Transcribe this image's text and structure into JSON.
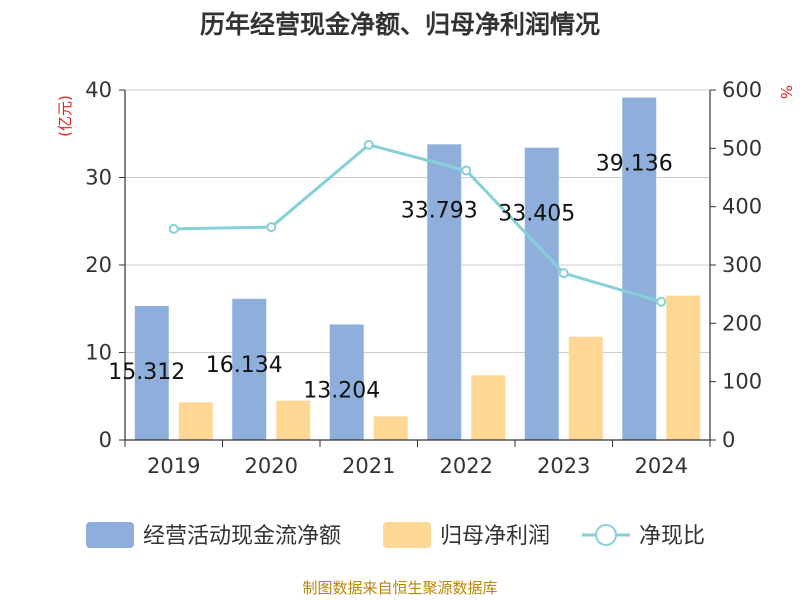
{
  "title": "历年经营现金净额、归母净利润情况",
  "source": "制图数据来自恒生聚源数据库",
  "left_unit": "(亿元)",
  "right_unit": "%",
  "colors": {
    "bar1": "#8eaedb",
    "bar2": "#fed795",
    "line": "#86d1d8",
    "axis": "#333333",
    "grid": "#cccccc",
    "unit": "#e0201e",
    "source": "#b8860b"
  },
  "chart_data": {
    "type": "bar",
    "title": "历年经营现金净额、归母净利润情况",
    "categories": [
      "2019",
      "2020",
      "2021",
      "2022",
      "2023",
      "2024"
    ],
    "series": [
      {
        "name": "经营活动现金流净额",
        "type": "bar",
        "axis": "left",
        "values": [
          15.312,
          16.134,
          13.204,
          33.793,
          33.405,
          39.136
        ],
        "labels": [
          "15.312",
          "16.134",
          "13.204",
          "33.793",
          "33.405",
          "39.136"
        ]
      },
      {
        "name": "归母净利润",
        "type": "bar",
        "axis": "left",
        "values": [
          4.3,
          4.5,
          2.7,
          7.4,
          11.8,
          16.5
        ]
      },
      {
        "name": "净现比",
        "type": "line",
        "axis": "right",
        "values": [
          362,
          365,
          506,
          462,
          286,
          237
        ]
      }
    ],
    "left_axis": {
      "ylim": [
        0,
        40
      ],
      "ticks": [
        0,
        10,
        20,
        30,
        40
      ],
      "label": "(亿元)"
    },
    "right_axis": {
      "ylim": [
        0,
        600
      ],
      "ticks": [
        0,
        100,
        200,
        300,
        400,
        500,
        600
      ],
      "label": "%"
    },
    "legend": "bottom"
  }
}
